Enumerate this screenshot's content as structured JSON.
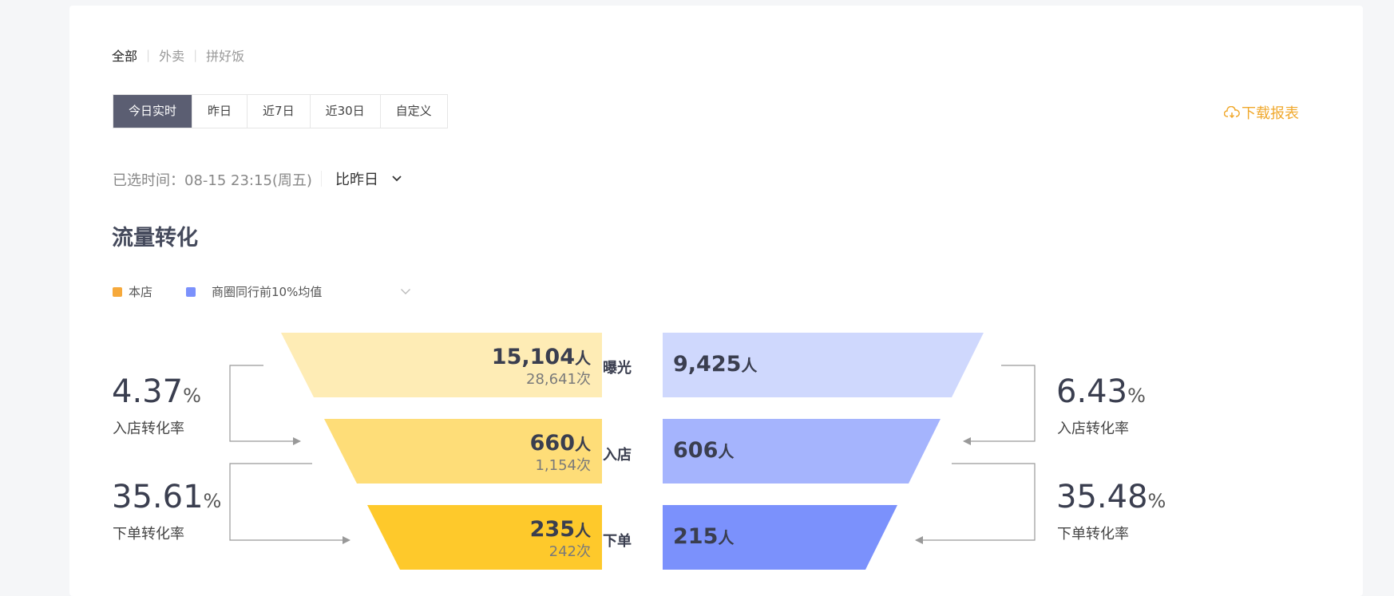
{
  "business_tabs": [
    "全部",
    "外卖",
    "拼好饭"
  ],
  "date_range": {
    "buttons": [
      "今日实时",
      "昨日",
      "近7日",
      "近30日",
      "自定义"
    ],
    "active_index": 0
  },
  "download_label": "下载报表",
  "selected_time": "已选时间：08-15 23:15(周五)",
  "compare": {
    "selected": "比昨日"
  },
  "section_title": "流量转化",
  "legend": {
    "own": "本店",
    "peer": "商圈同行前10%均值"
  },
  "colors": {
    "own": [
      "#feecb5",
      "#fedd78",
      "#fec92b"
    ],
    "peer": [
      "#cfd8fd",
      "#a5b4fd",
      "#7b91fc"
    ],
    "accent": "#f0a92e",
    "active_button": "#5b5e72"
  },
  "funnel": {
    "stages": [
      {
        "name": "曝光",
        "own_people": "15,104",
        "own_visits": "28,641次",
        "peer_people": "9,425"
      },
      {
        "name": "入店",
        "own_people": "660",
        "own_visits": "1,154次",
        "peer_people": "606"
      },
      {
        "name": "下单",
        "own_people": "235",
        "own_visits": "242次",
        "peer_people": "215"
      }
    ],
    "unit": "人"
  },
  "rates": {
    "own": [
      {
        "value": "4.37",
        "label": "入店转化率"
      },
      {
        "value": "35.61",
        "label": "下单转化率"
      }
    ],
    "peer": [
      {
        "value": "6.43",
        "label": "入店转化率"
      },
      {
        "value": "35.48",
        "label": "下单转化率"
      }
    ],
    "pct_sign": "%"
  }
}
